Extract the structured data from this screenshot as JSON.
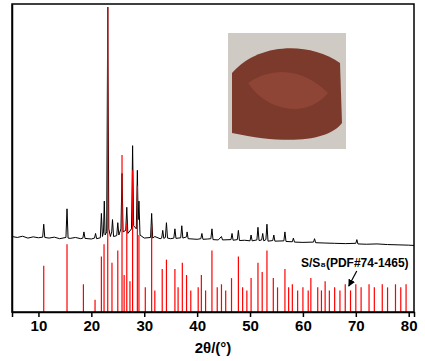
{
  "chart_data": {
    "type": "line",
    "x_label": "2θ/(°)",
    "xlim": [
      5,
      81
    ],
    "xticks": [
      10,
      20,
      30,
      40,
      50,
      60,
      70,
      80
    ],
    "ylim": [
      0,
      100
    ],
    "yticks": [],
    "tick_labels": "x",
    "grid": false,
    "series": [
      {
        "type": "line",
        "color": "#000000",
        "x": [
          5,
          6,
          7,
          8,
          9,
          10,
          10.8,
          11.0,
          11.2,
          12,
          13,
          14,
          15.2,
          15.4,
          15.6,
          16,
          17,
          18,
          18.4,
          18.6,
          18.8,
          20,
          20.6,
          20.8,
          21,
          21.7,
          21.9,
          22.1,
          22.3,
          22.45,
          22.6,
          22.9,
          23.1,
          23.3,
          23.6,
          23.85,
          24.0,
          24.2,
          24.8,
          25.0,
          25.2,
          25.6,
          25.8,
          26.0,
          26.5,
          26.7,
          26.9,
          27.6,
          27.8,
          28.0,
          28.5,
          28.7,
          28.85,
          29.0,
          29.2,
          30,
          31.2,
          31.4,
          31.6,
          32,
          33,
          33.3,
          33.5,
          33.7,
          34.0,
          34.2,
          34.4,
          35,
          35.6,
          35.8,
          36.0,
          36.9,
          37.1,
          37.3,
          38.0,
          38.1,
          38.3,
          40,
          40.7,
          40.9,
          41.1,
          42,
          42.6,
          42.8,
          43.0,
          44,
          44.6,
          44.8,
          46.4,
          46.6,
          46.8,
          47.6,
          47.8,
          48.0,
          49,
          50,
          50.2,
          50.4,
          51.3,
          51.5,
          51.7,
          52.2,
          52.4,
          52.6,
          53.0,
          53.2,
          53.4,
          54.3,
          54.5,
          54.7,
          56.4,
          56.6,
          56.8,
          58,
          58.2,
          58.4,
          60,
          62,
          62.2,
          62.4,
          64,
          66,
          68,
          70,
          70.2,
          70.4,
          72,
          74,
          76,
          78,
          80,
          81
        ],
        "values": [
          24.5,
          24.2,
          24.6,
          24.0,
          24.4,
          24.1,
          24.3,
          28.5,
          24.2,
          24.0,
          24.3,
          23.8,
          24.2,
          33.5,
          24.0,
          23.9,
          24.2,
          23.8,
          24.0,
          26.0,
          23.9,
          23.7,
          24.0,
          25.5,
          23.8,
          24.1,
          32.0,
          24.5,
          26.0,
          36.0,
          25.0,
          26.0,
          99.0,
          27.0,
          24.5,
          26.0,
          30.0,
          24.5,
          24.8,
          29.0,
          25.0,
          27.0,
          45.0,
          26.0,
          26.5,
          34.0,
          25.5,
          27.0,
          54.0,
          28.0,
          27.0,
          46.0,
          30.0,
          36.0,
          25.0,
          24.0,
          24.2,
          32.0,
          24.0,
          24.5,
          23.8,
          24.0,
          26.5,
          23.9,
          24.2,
          29.0,
          24.0,
          23.8,
          24.0,
          27.0,
          23.9,
          24.1,
          28.0,
          24.0,
          24.4,
          26.0,
          23.8,
          23.6,
          23.8,
          25.5,
          23.6,
          23.7,
          23.8,
          27.0,
          23.5,
          23.4,
          24.5,
          23.4,
          23.5,
          25.5,
          23.3,
          23.5,
          26.5,
          23.2,
          23.3,
          23.1,
          25.0,
          23.1,
          23.4,
          27.5,
          23.2,
          23.4,
          25.5,
          23.1,
          23.5,
          28.5,
          23.0,
          23.2,
          25.0,
          23.0,
          23.1,
          26.0,
          22.9,
          22.8,
          24.0,
          22.7,
          22.6,
          22.7,
          23.8,
          22.5,
          22.4,
          22.3,
          22.2,
          22.3,
          23.5,
          22.1,
          22.0,
          22.1,
          21.9,
          21.8,
          21.7,
          21.6
        ]
      },
      {
        "type": "bar",
        "name": "S/S₈(PDF#74-1465)",
        "color": "#ff0000",
        "x": [
          11.0,
          15.4,
          18.5,
          20.7,
          21.9,
          22.4,
          23.1,
          23.9,
          25.0,
          25.8,
          26.2,
          26.7,
          27.3,
          27.8,
          28.7,
          29.0,
          30.2,
          31.4,
          32.0,
          33.4,
          34.2,
          35.8,
          36.4,
          37.2,
          38.0,
          38.8,
          40.2,
          40.8,
          41.6,
          42.8,
          43.8,
          44.6,
          45.4,
          46.5,
          47.8,
          48.6,
          49.4,
          50.2,
          51.5,
          52.3,
          53.2,
          54.4,
          55.2,
          56.6,
          57.3,
          58.0,
          59.0,
          60.0,
          61.0,
          61.5,
          62.8,
          63.5,
          64.2,
          65.0,
          66.0,
          67.0,
          68.0,
          69.0,
          70.0,
          71.0,
          72.5,
          73.5,
          75.0,
          76.0,
          77.5,
          78.5,
          79.5
        ],
        "values": [
          15,
          22,
          9,
          4,
          18,
          22,
          99,
          16,
          20,
          51,
          12,
          29,
          10,
          46,
          41,
          25,
          8,
          28,
          7,
          14,
          17,
          14,
          8,
          16,
          12,
          7,
          8,
          12,
          7,
          20,
          8,
          9,
          7,
          11,
          18,
          8,
          7,
          11,
          16,
          13,
          20,
          11,
          8,
          14,
          8,
          9,
          7,
          8,
          7,
          11,
          8,
          7,
          10,
          7,
          8,
          7,
          9,
          7,
          9,
          8,
          9,
          8,
          9,
          8,
          9,
          8,
          9
        ]
      }
    ]
  }
}
